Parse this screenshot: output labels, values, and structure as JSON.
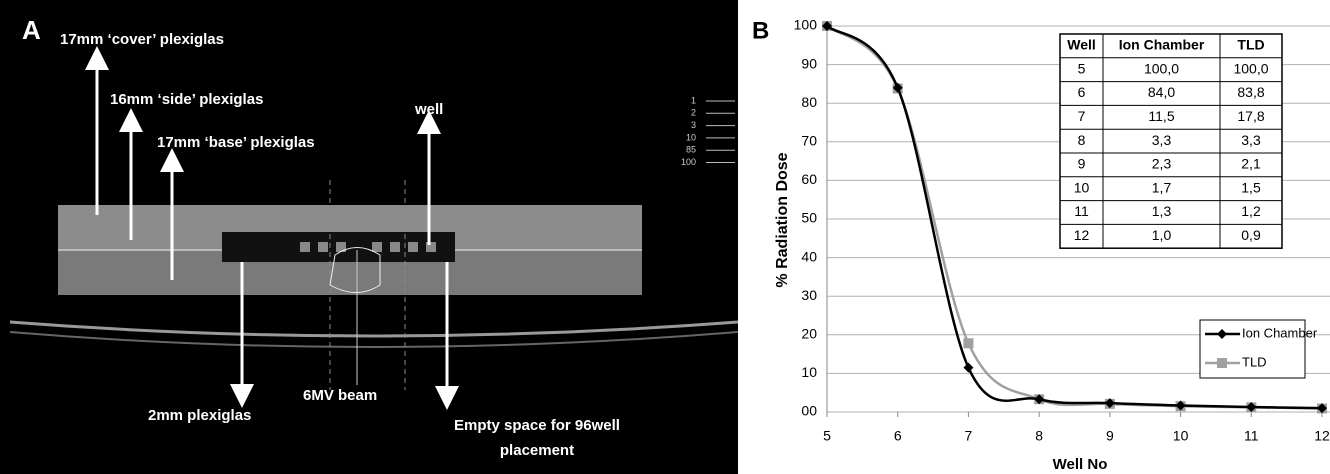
{
  "image_panel": {
    "label": "A",
    "annotations": [
      "17mm ‘cover’ plexiglas",
      "16mm ‘side’ plexiglas",
      "17mm ‘base’ plexiglas",
      "well",
      "2mm plexiglas",
      "6MV beam"
    ],
    "placement_note": [
      "Empty space for 96well",
      "placement"
    ],
    "isodose_legend": [
      "1",
      "2",
      "3",
      "10",
      "85",
      "100"
    ]
  },
  "chart_data": {
    "type": "line",
    "panel_label": "B",
    "x_label": "Well No",
    "y_label": "% Radiation Dose",
    "x": [
      5,
      6,
      7,
      8,
      9,
      10,
      11,
      12
    ],
    "series": [
      {
        "name": "Ion Chamber",
        "color": "#000000",
        "marker": "diamond",
        "values": [
          100,
          84,
          11.5,
          3.3,
          2.3,
          1.7,
          1.3,
          1.0
        ]
      },
      {
        "name": "TLD",
        "color": "#a0a0a0",
        "marker": "square",
        "values": [
          100,
          83.8,
          17.8,
          3.3,
          2.1,
          1.5,
          1.2,
          0.9
        ]
      }
    ],
    "xlim": [
      5,
      12
    ],
    "xticks": [
      5,
      6,
      7,
      8,
      9,
      10,
      11,
      12
    ],
    "ylim": [
      0,
      100
    ],
    "yticks": [
      {
        "value": 0,
        "label": "00"
      },
      10,
      20,
      30,
      40,
      50,
      60,
      70,
      80,
      90,
      100
    ],
    "grid": true,
    "legend": "lower right",
    "table": {
      "header": [
        "Well",
        "Ion Chamber",
        "TLD"
      ],
      "rows": [
        [
          "5",
          "100,0",
          "100,0"
        ],
        [
          "6",
          "84,0",
          "83,8"
        ],
        [
          "7",
          "11,5",
          "17,8"
        ],
        [
          "8",
          "3,3",
          "3,3"
        ],
        [
          "9",
          "2,3",
          "2,1"
        ],
        [
          "10",
          "1,7",
          "1,5"
        ],
        [
          "11",
          "1,3",
          "1,2"
        ],
        [
          "12",
          "1,0",
          "0,9"
        ]
      ]
    }
  }
}
